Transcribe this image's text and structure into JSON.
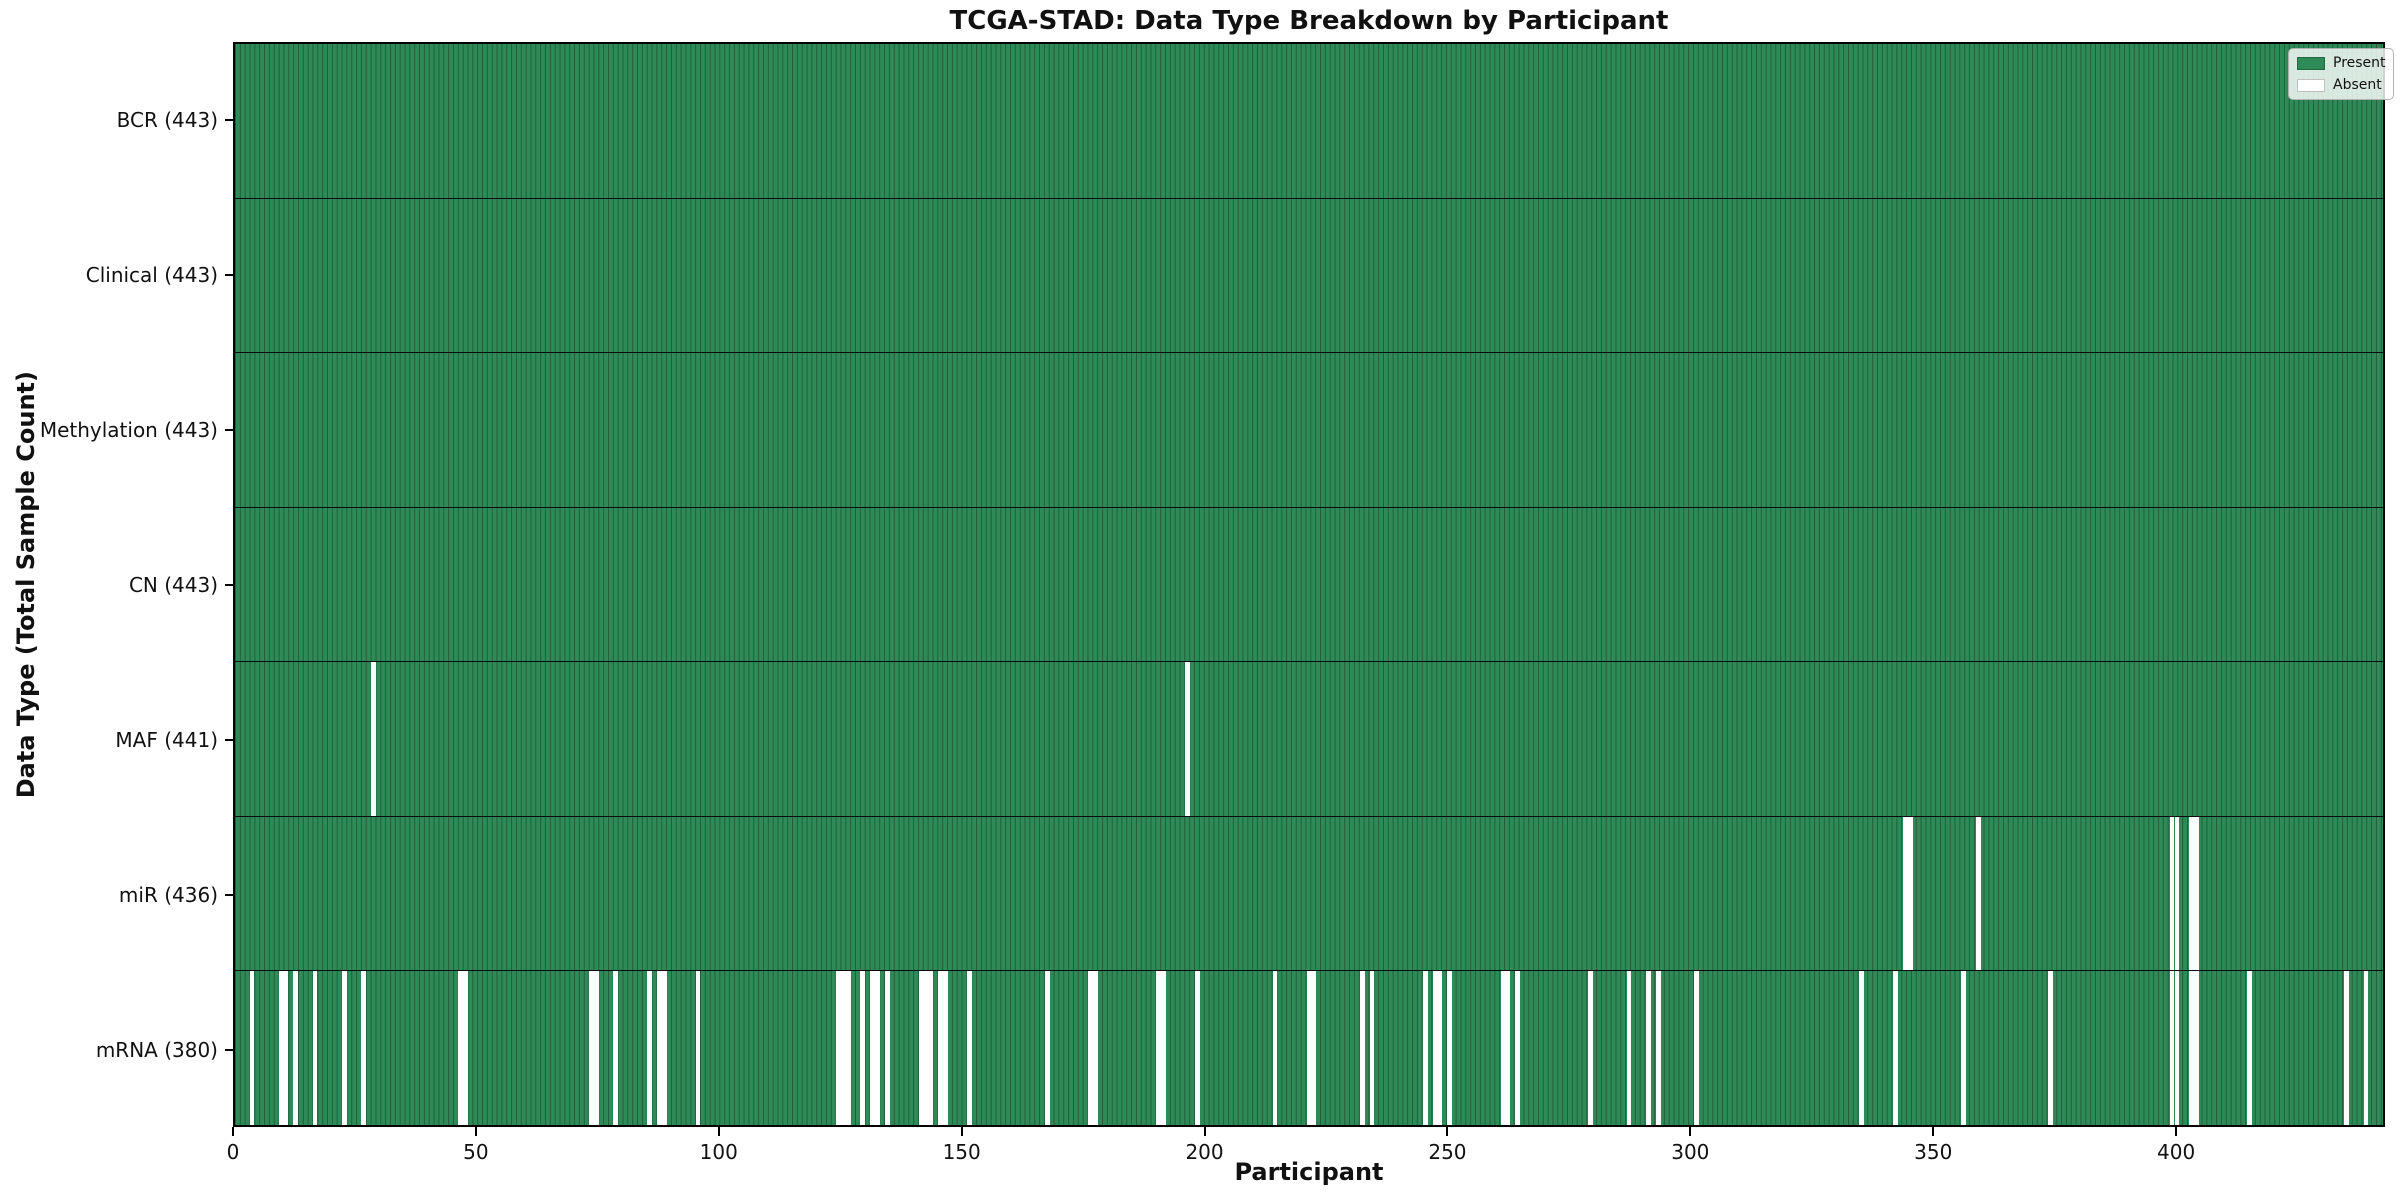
{
  "chart_data": {
    "type": "heatmap",
    "title": "TCGA-STAD: Data Type Breakdown by Participant",
    "xlabel": "Participant",
    "ylabel": "Data Type (Total Sample Count)",
    "x_ticks": [
      0,
      50,
      100,
      150,
      200,
      250,
      300,
      350,
      400
    ],
    "x_max": 443,
    "n_participants": 443,
    "grid": "row-separators-only",
    "legend_position": "upper-right",
    "legend_entries": [
      {
        "label": "Present",
        "color": "#2e8b57"
      },
      {
        "label": "Absent",
        "color": "#ffffff"
      }
    ],
    "colors": {
      "present_fill": "#2e8b57",
      "bar_edge": "#205e3b",
      "absent_fill": "#ffffff",
      "spine": "#000000"
    },
    "rows": [
      {
        "label": "BCR (443)",
        "name": "bcr",
        "total_present": 443,
        "absent_participants": []
      },
      {
        "label": "Clinical (443)",
        "name": "clinical",
        "total_present": 443,
        "absent_participants": []
      },
      {
        "label": "Methylation (443)",
        "name": "methylation",
        "total_present": 443,
        "absent_participants": []
      },
      {
        "label": "CN (443)",
        "name": "cn",
        "total_present": 443,
        "absent_participants": []
      },
      {
        "label": "MAF (441)",
        "name": "maf",
        "total_present": 441,
        "absent_participants": [
          28,
          196
        ]
      },
      {
        "label": "miR (436)",
        "name": "mir",
        "total_present": 436,
        "absent_participants": [
          344,
          345,
          359,
          399,
          400,
          403,
          404
        ]
      },
      {
        "label": "mRNA (380)",
        "name": "mrna",
        "total_present": 380,
        "absent_participants": [
          3,
          9,
          10,
          12,
          16,
          22,
          26,
          46,
          47,
          73,
          74,
          78,
          85,
          87,
          88,
          95,
          124,
          125,
          126,
          129,
          131,
          132,
          134,
          141,
          142,
          143,
          145,
          146,
          151,
          167,
          176,
          177,
          190,
          191,
          198,
          214,
          221,
          222,
          232,
          234,
          245,
          247,
          248,
          250,
          261,
          262,
          264,
          279,
          287,
          291,
          293,
          301,
          335,
          342,
          356,
          374,
          399,
          400,
          403,
          404,
          415,
          435,
          439
        ]
      }
    ]
  }
}
